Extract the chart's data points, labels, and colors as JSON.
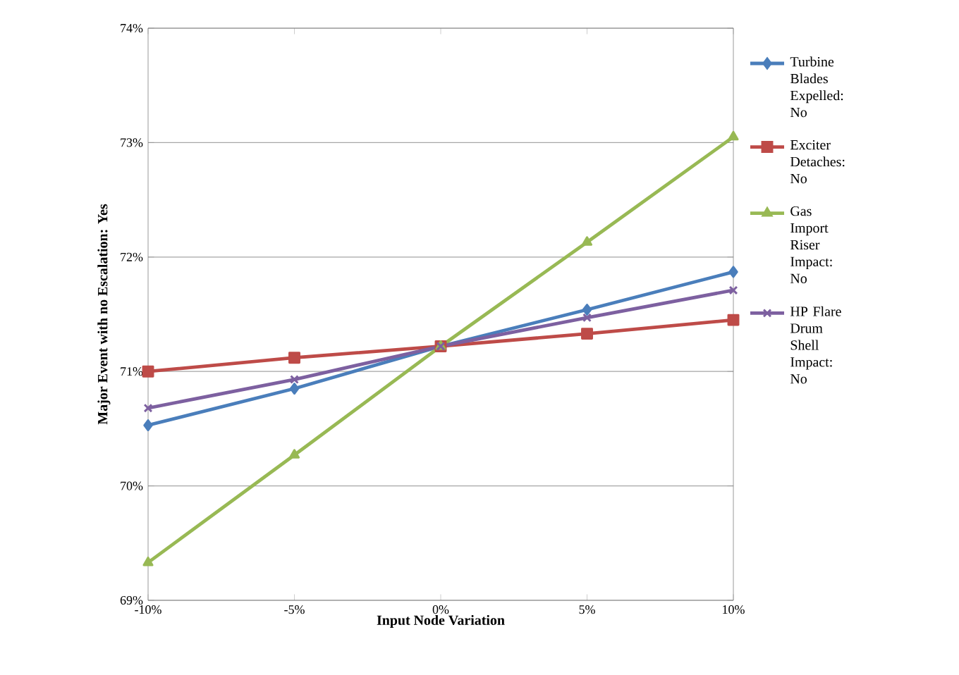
{
  "chart_data": {
    "type": "line",
    "xlabel": "Input Node Variation",
    "ylabel": "Major Event with no Escalation: Yes",
    "x": [
      -10,
      -5,
      0,
      5,
      10
    ],
    "xlim": [
      -10,
      10
    ],
    "xticks": [
      {
        "value": -10,
        "label": "-10%"
      },
      {
        "value": -5,
        "label": "-5%"
      },
      {
        "value": 0,
        "label": "0%"
      },
      {
        "value": 5,
        "label": "5%"
      },
      {
        "value": 10,
        "label": "10%"
      }
    ],
    "ylim": [
      69,
      74
    ],
    "yticks": [
      {
        "value": 69,
        "label": "69%"
      },
      {
        "value": 70,
        "label": "70%"
      },
      {
        "value": 71,
        "label": "71%"
      },
      {
        "value": 72,
        "label": "72%"
      },
      {
        "value": 73,
        "label": "73%"
      },
      {
        "value": 74,
        "label": "74%"
      }
    ],
    "grid": "y",
    "legend": "right",
    "series": [
      {
        "name": "Turbine Blades Expelled: No",
        "color": "#4a7ebb",
        "marker": "diamond",
        "values": [
          70.53,
          70.85,
          71.22,
          71.54,
          71.87
        ]
      },
      {
        "name": "Exciter Detaches: No",
        "color": "#be4b48",
        "marker": "square",
        "values": [
          71.0,
          71.12,
          71.22,
          71.33,
          71.45
        ]
      },
      {
        "name": "Gas Import Riser Impact: No",
        "color": "#98b954",
        "marker": "triangle",
        "values": [
          69.33,
          70.27,
          71.22,
          72.13,
          73.05
        ]
      },
      {
        "name": "HP Flare Drum Shell Impact: No",
        "color": "#7d60a0",
        "marker": "cross",
        "values": [
          70.68,
          70.93,
          71.22,
          71.47,
          71.71
        ]
      }
    ]
  }
}
